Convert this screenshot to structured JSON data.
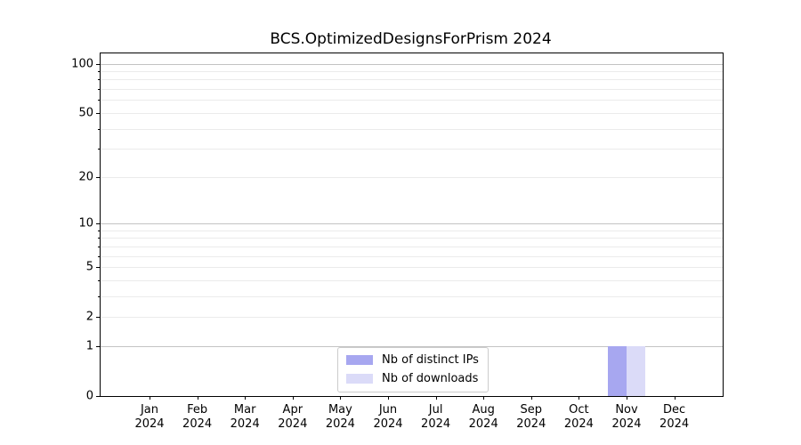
{
  "title": "BCS.OptimizedDesignsForPrism 2024",
  "colors": {
    "distinct_ips": "#a7a7f0",
    "downloads": "#dbdbf8",
    "major_grid": "#c3c3c3",
    "minor_grid": "#ebebeb",
    "axis": "#000000",
    "legend_border": "#cccccc",
    "background": "#ffffff"
  },
  "chart_data": {
    "type": "bar",
    "title": "BCS.OptimizedDesignsForPrism 2024",
    "x_categories": [
      "Jan",
      "Feb",
      "Mar",
      "Apr",
      "May",
      "Jun",
      "Jul",
      "Aug",
      "Sep",
      "Oct",
      "Nov",
      "Dec"
    ],
    "x_year": "2024",
    "series": [
      {
        "name": "Nb of distinct IPs",
        "color": "#a7a7f0",
        "values": [
          0,
          0,
          0,
          0,
          0,
          0,
          0,
          0,
          0,
          0,
          1,
          0
        ]
      },
      {
        "name": "Nb of downloads",
        "color": "#dbdbf8",
        "values": [
          0,
          0,
          0,
          0,
          0,
          0,
          0,
          0,
          0,
          0,
          1,
          0
        ]
      }
    ],
    "y_scale": "log10(value+1)",
    "y_major_ticks": [
      100,
      50,
      20,
      10,
      5,
      2,
      1,
      0
    ],
    "y_decade_gridlines": [
      1,
      10,
      100
    ],
    "y_minor_gridlines": [
      2,
      3,
      4,
      5,
      6,
      7,
      8,
      9,
      20,
      30,
      40,
      50,
      60,
      70,
      80,
      90
    ],
    "ylim": [
      0,
      116
    ],
    "xlabel": "",
    "ylabel": "",
    "grid": "horizontal-both",
    "legend_position": "bottom-center-inside"
  }
}
